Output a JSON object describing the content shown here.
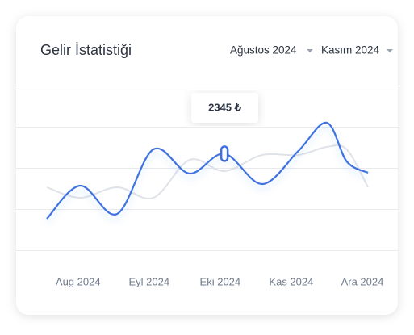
{
  "header": {
    "title": "Gelir İstatistiği",
    "range_start": "Ağustos 2024",
    "range_end": "Kasım 2024"
  },
  "chart_data": {
    "type": "line",
    "x": [
      -0.44,
      0.03,
      0.55,
      1.06,
      1.57,
      2.06,
      2.59,
      3.1,
      3.5,
      3.78,
      4.08
    ],
    "xlim": [
      -0.44,
      4.08
    ],
    "xticks": [
      {
        "value": 0,
        "label": "Aug 2024"
      },
      {
        "value": 1,
        "label": "Eyl 2024"
      },
      {
        "value": 2,
        "label": "Eki 2024"
      },
      {
        "value": 3,
        "label": "Kas 2024"
      },
      {
        "value": 4,
        "label": "Ara 2024"
      }
    ],
    "ylim": [
      0,
      4000
    ],
    "series": [
      {
        "color": "#3f72e0",
        "values": [
          765,
          1569,
          882,
          2451,
          1863,
          2345,
          1608,
          2412,
          3098,
          2157,
          1882
        ]
      },
      {
        "color": "#dfe2e8",
        "values": [
          1529,
          1275,
          1529,
          1275,
          2196,
          1922,
          2314,
          2314,
          2510,
          2451,
          1529
        ]
      }
    ],
    "tooltip": "2345 ₺"
  }
}
